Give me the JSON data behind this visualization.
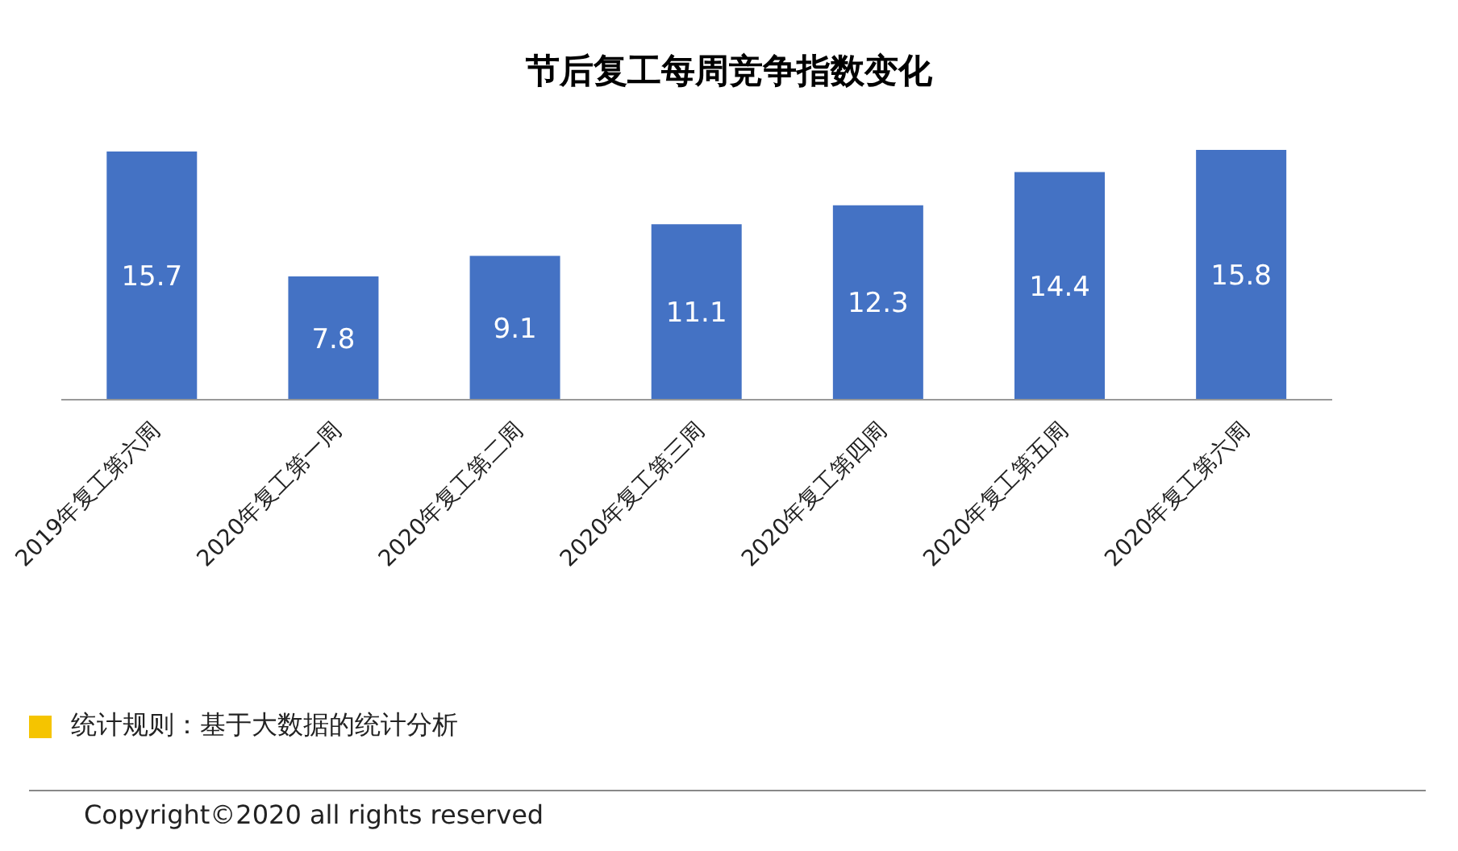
{
  "chart_data": {
    "type": "bar",
    "title": "节后复工每周竞争指数变化",
    "categories": [
      "2019年复工第六周",
      "2020年复工第一周",
      "2020年复工第二周",
      "2020年复工第三周",
      "2020年复工第四周",
      "2020年复工第五周",
      "2020年复工第六周"
    ],
    "values": [
      15.7,
      7.8,
      9.1,
      11.1,
      12.3,
      14.4,
      15.8
    ],
    "color": "#4472c4",
    "data_labels": true,
    "annotations": [
      "统计规则：基于大数据的统计分析",
      "Copyright©2020 all rights reserved"
    ]
  }
}
